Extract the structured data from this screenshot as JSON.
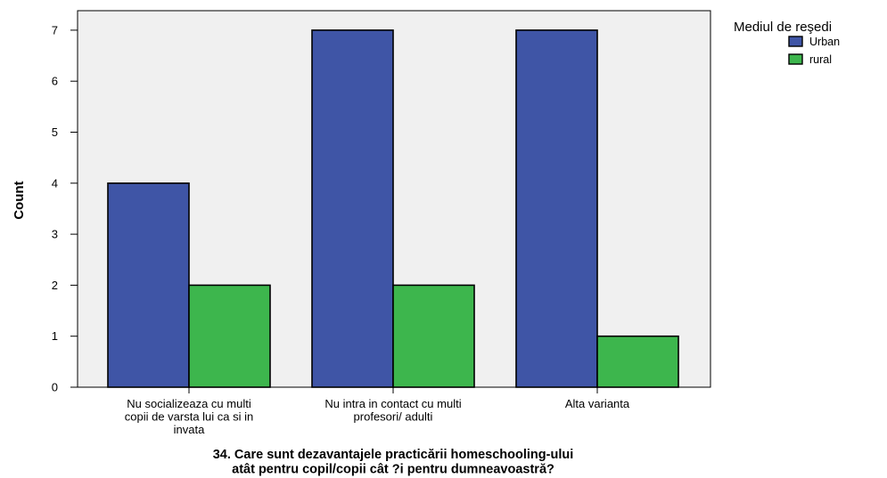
{
  "chart_data": {
    "type": "bar",
    "categories": [
      [
        "Nu socializeaza cu multi",
        "copii de varsta lui ca si in",
        "invata"
      ],
      [
        "Nu intra in contact cu multi",
        "profesori/ adulti"
      ],
      [
        "Alta varianta"
      ]
    ],
    "series": [
      {
        "name": "Urban",
        "color": "#3f55a6",
        "values": [
          4,
          7,
          7
        ]
      },
      {
        "name": "rural",
        "color": "#3db64d",
        "values": [
          2,
          2,
          1
        ]
      }
    ],
    "ylabel": "Count",
    "xlabel": [
      "34. Care sunt dezavantajele practicării homeschooling-ului",
      "atât pentru copil/copii cât ?i pentru dumneavoastră?"
    ],
    "ylim": [
      0,
      7.4
    ],
    "yticks": [
      0,
      1,
      2,
      3,
      4,
      5,
      6,
      7
    ],
    "legend": {
      "title": "Mediul de reşedi",
      "placement": "top-right"
    },
    "plot_background": "#f0f0f0",
    "grid": false
  }
}
